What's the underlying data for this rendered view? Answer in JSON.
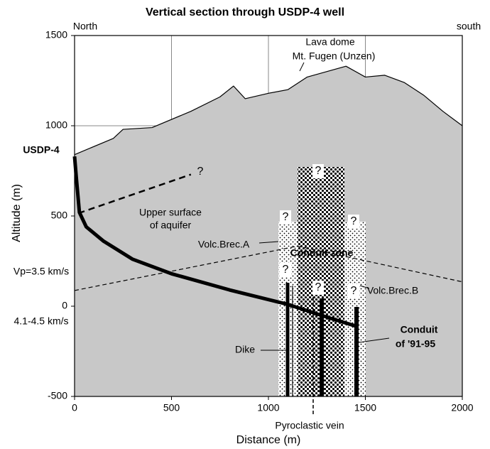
{
  "chart_data": {
    "type": "line",
    "title": "Vertical section through USDP-4 well",
    "x_label": "Distance (m)",
    "y_label": "Altitude (m)",
    "xlim": [
      0,
      2000
    ],
    "ylim": [
      -500,
      1500
    ],
    "xticks": [
      0,
      500,
      1000,
      1500,
      2000
    ],
    "yticks": [
      -500,
      0,
      500,
      1000,
      1500
    ],
    "grid": true,
    "series": [
      {
        "color": "#000000",
        "x": [
          0,
          200,
          250,
          400,
          600,
          750,
          820,
          880,
          1000,
          1100,
          1200,
          1300,
          1400,
          1500,
          1600,
          1700,
          1800,
          1900,
          2000
        ],
        "values": [
          840,
          930,
          980,
          990,
          1080,
          1160,
          1220,
          1150,
          1180,
          1200,
          1270,
          1300,
          1330,
          1270,
          1280,
          1240,
          1170,
          1080,
          1000
        ]
      },
      {
        "color": "#000000",
        "x": [
          0,
          10,
          25,
          60,
          150,
          300,
          500,
          800,
          1100,
          1300,
          1450
        ],
        "values": [
          830,
          700,
          520,
          440,
          360,
          260,
          180,
          90,
          10,
          -60,
          -110
        ]
      },
      {
        "color": "#000000",
        "x": [
          20,
          600
        ],
        "values": [
          515,
          730
        ]
      },
      {
        "color": "#000000",
        "x": [
          0,
          1150,
          2000
        ],
        "values": [
          87,
          333,
          135
        ]
      }
    ],
    "annotations": [
      "North",
      "south",
      "Lava dome",
      "Mt. Fugen (Unzen)",
      "USDP-4",
      "Upper surface",
      "of aquifer",
      "Volc.Brec.A",
      "Conduit zone",
      "Vp=3.5 km/s",
      "4.1-4.5 km/s",
      "Volc.Brec.B",
      "Dike",
      "Conduit",
      "of '91-95",
      "Pyroclastic vein",
      "?",
      "?",
      "?",
      "?",
      "?",
      "?",
      "?"
    ]
  }
}
